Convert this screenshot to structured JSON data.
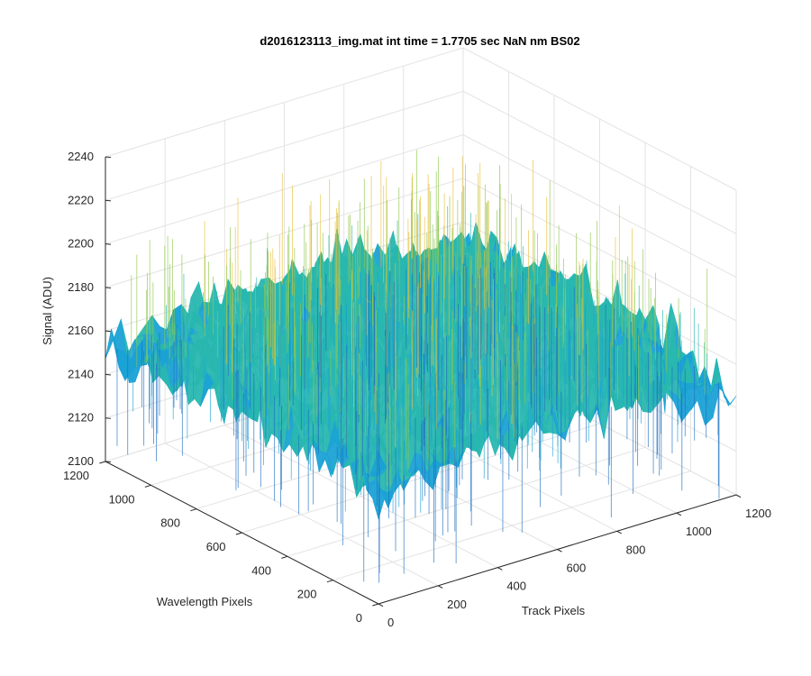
{
  "chart_data": {
    "type": "surface",
    "title": "d2016123113_img.mat int time = 1.7705 sec  NaN nm BS02",
    "xlabel": "Track Pixels",
    "ylabel": "Wavelength Pixels",
    "zlabel": "Signal (ADU)",
    "x_ticks": [
      0,
      200,
      400,
      600,
      800,
      1000,
      1200
    ],
    "y_ticks": [
      0,
      200,
      400,
      600,
      800,
      1000,
      1200
    ],
    "z_ticks": [
      2100,
      2120,
      2140,
      2160,
      2180,
      2200,
      2220,
      2240
    ],
    "xlim": [
      0,
      1200
    ],
    "ylim": [
      0,
      1200
    ],
    "zlim": [
      2100,
      2240
    ],
    "surface_center_level": 2168,
    "surface_edge_level": 2150,
    "surface_min_approx": 2100,
    "surface_max_approx": 2230,
    "grid": true,
    "colormap_colors": [
      "#1f6fc1",
      "#1ba2d5",
      "#29b7b0",
      "#8fc74f",
      "#e9c13a"
    ]
  }
}
